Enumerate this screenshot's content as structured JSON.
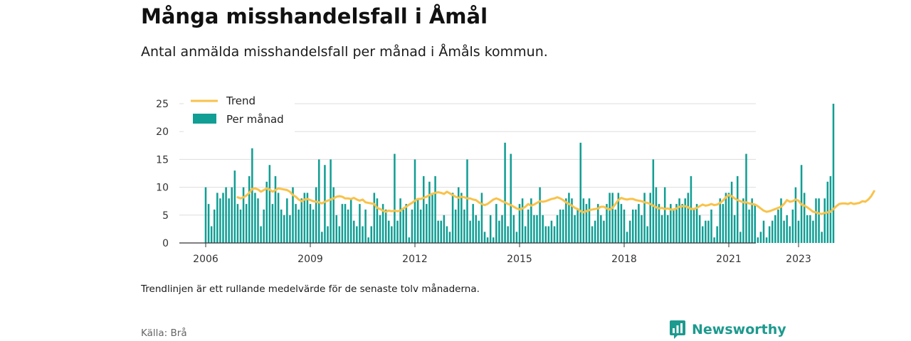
{
  "header": {
    "title": "Många misshandelsfall i Åmål",
    "subtitle": "Antal anmälda misshandelsfall per månad i Åmåls kommun."
  },
  "footer": {
    "note": "Trendlinjen är ett rullande medelvärde för de senaste tolv månaderna.",
    "source": "Källa: Brå",
    "brand": "Newsworthy",
    "brand_icon": "bar-chart-speech-icon"
  },
  "colors": {
    "bars": "#119e94",
    "trend": "#f9c24a",
    "brand": "#1d9a8e",
    "grid": "#dddddd",
    "axis": "#333333"
  },
  "chart_data": {
    "type": "bar",
    "start": "2006-01",
    "y_ticks": [
      0,
      5,
      10,
      15,
      20,
      25
    ],
    "ylim": [
      0,
      25
    ],
    "x_ticks": [
      "2006",
      "2009",
      "2012",
      "2015",
      "2018",
      "2021",
      "2023"
    ],
    "grid": true,
    "legend_position": "top-left",
    "series": [
      {
        "name": "Per månad",
        "type": "bar",
        "values": [
          10,
          7,
          3,
          6,
          9,
          8,
          9,
          10,
          8,
          10,
          13,
          7,
          6,
          10,
          7,
          12,
          17,
          9,
          8,
          3,
          6,
          11,
          14,
          7,
          12,
          9,
          6,
          5,
          8,
          5,
          10,
          7,
          6,
          8,
          9,
          9,
          7,
          6,
          10,
          15,
          2,
          14,
          3,
          15,
          10,
          5,
          3,
          7,
          7,
          6,
          8,
          4,
          3,
          7,
          3,
          6,
          1,
          3,
          9,
          8,
          5,
          7,
          6,
          4,
          3,
          16,
          4,
          8,
          6,
          7,
          1,
          6,
          15,
          8,
          6,
          12,
          7,
          11,
          9,
          12,
          4,
          4,
          5,
          3,
          2,
          9,
          6,
          10,
          9,
          6,
          15,
          4,
          7,
          5,
          4,
          9,
          2,
          1,
          5,
          1,
          7,
          4,
          5,
          18,
          3,
          16,
          5,
          2,
          7,
          8,
          3,
          6,
          8,
          5,
          5,
          10,
          5,
          3,
          3,
          4,
          3,
          5,
          6,
          6,
          8,
          9,
          8,
          5,
          6,
          18,
          8,
          7,
          8,
          3,
          4,
          7,
          5,
          4,
          7,
          9,
          9,
          6,
          9,
          7,
          6,
          2,
          4,
          6,
          6,
          7,
          5,
          9,
          3,
          9,
          15,
          10,
          7,
          5,
          10,
          5,
          7,
          6,
          7,
          8,
          7,
          8,
          9,
          12,
          6,
          7,
          5,
          3,
          4,
          4,
          6,
          1,
          3,
          8,
          7,
          9,
          9,
          11,
          5,
          12,
          2,
          8,
          16,
          6,
          8,
          7,
          1,
          2,
          4,
          1,
          3,
          4,
          5,
          6,
          8,
          4,
          5,
          3,
          6,
          10,
          4,
          14,
          9,
          5,
          5,
          4,
          8,
          8,
          2,
          8,
          11,
          12,
          25
        ],
        "color": "#119e94"
      },
      {
        "name": "Trend",
        "type": "line",
        "start_index": 11,
        "values": [
          8.2,
          8.0,
          8.2,
          8.5,
          9.0,
          9.7,
          9.8,
          9.6,
          9.2,
          9.5,
          9.8,
          9.6,
          9.2,
          9.5,
          9.8,
          9.7,
          9.6,
          9.5,
          9.2,
          8.6,
          8.3,
          7.8,
          7.5,
          7.8,
          7.9,
          7.7,
          7.5,
          7.4,
          7.3,
          7.1,
          7.4,
          7.6,
          7.8,
          8.0,
          8.3,
          8.4,
          8.3,
          8.0,
          8.0,
          7.9,
          8.1,
          7.8,
          7.6,
          7.8,
          7.3,
          7.2,
          7.1,
          7.0,
          6.3,
          6.1,
          5.8,
          5.6,
          5.8,
          5.7,
          5.8,
          5.7,
          5.8,
          6.2,
          6.5,
          6.9,
          7.2,
          7.6,
          7.9,
          7.9,
          8.1,
          8.3,
          8.6,
          8.8,
          9.0,
          9.1,
          9.0,
          8.8,
          9.2,
          8.9,
          8.6,
          8.3,
          8.1,
          8.3,
          8.2,
          8.0,
          8.0,
          7.8,
          7.7,
          7.3,
          7.0,
          6.8,
          7.0,
          7.4,
          7.8,
          8.0,
          7.8,
          7.5,
          7.3,
          7.0,
          6.8,
          6.5,
          6.2,
          6.0,
          6.2,
          6.5,
          7.0,
          6.7,
          6.9,
          7.2,
          7.5,
          7.4,
          7.5,
          7.7,
          7.9,
          8.0,
          8.2,
          8.0,
          7.7,
          7.3,
          7.0,
          6.7,
          6.3,
          6.1,
          5.7,
          5.5,
          5.7,
          5.9,
          6.0,
          6.1,
          6.2,
          6.5,
          6.5,
          6.2,
          6.0,
          6.3,
          7.0,
          7.7,
          8.1,
          7.9,
          7.8,
          7.9,
          7.9,
          7.7,
          7.6,
          7.5,
          7.3,
          7.2,
          7.0,
          6.7,
          6.4,
          6.2,
          6.3,
          6.1,
          6.2,
          6.0,
          6.0,
          6.2,
          6.5,
          6.6,
          6.6,
          6.4,
          6.1,
          6.1,
          6.3,
          6.6,
          6.9,
          6.7,
          6.8,
          7.0,
          6.8,
          6.9,
          7.2,
          7.6,
          8.2,
          8.6,
          8.4,
          8.0,
          7.7,
          7.5,
          7.3,
          7.3,
          7.1,
          7.0,
          6.9,
          6.6,
          6.2,
          5.8,
          5.6,
          5.7,
          5.9,
          6.1,
          6.3,
          6.5,
          7.0,
          7.7,
          7.4,
          7.5,
          7.8,
          7.6,
          6.9,
          6.7,
          6.4,
          6.0,
          5.6,
          5.5,
          5.3,
          5.2,
          5.4,
          5.5,
          5.6,
          6.1,
          6.6,
          7.0,
          7.1,
          7.1,
          7.0,
          7.2,
          7.0,
          7.1,
          7.2,
          7.5,
          7.4,
          7.8,
          8.4,
          9.3
        ],
        "color": "#f9c24a"
      }
    ]
  }
}
